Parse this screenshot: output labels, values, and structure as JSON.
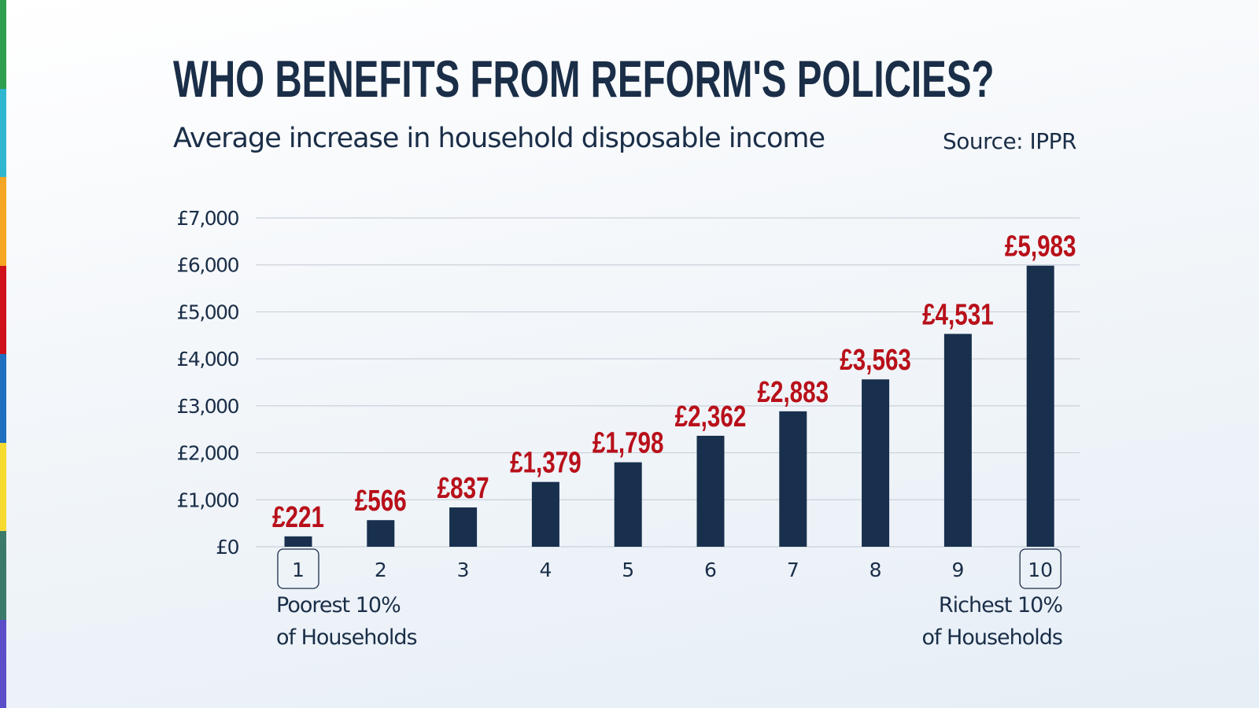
{
  "header": {
    "title": "WHO BENEFITS FROM REFORM'S POLICIES?",
    "subtitle": "Average increase in household disposable income",
    "source": "Source: IPPR"
  },
  "colors": {
    "bar": "#18304d",
    "value_label": "#b8101a",
    "title": "#1a2e48",
    "gridline": "#c9d1da",
    "side_strip": [
      "#2e9e4f",
      "#2fb6d0",
      "#f5a623",
      "#d0101b",
      "#1e6fc0",
      "#f7da2f",
      "#3b7a6a",
      "#5b4fc9"
    ]
  },
  "chart_data": {
    "type": "bar",
    "title": "WHO BENEFITS FROM REFORM'S POLICIES?",
    "subtitle": "Average increase in household disposable income",
    "categories": [
      "1",
      "2",
      "3",
      "4",
      "5",
      "6",
      "7",
      "8",
      "9",
      "10"
    ],
    "values": [
      221,
      566,
      837,
      1379,
      1798,
      2362,
      2883,
      3563,
      4531,
      5983
    ],
    "data_labels": [
      "£221",
      "£566",
      "£837",
      "£1,379",
      "£1,798",
      "£2,362",
      "£2,883",
      "£3,563",
      "£4,531",
      "£5,983"
    ],
    "yticks": [
      0,
      1000,
      2000,
      3000,
      4000,
      5000,
      6000,
      7000
    ],
    "ytick_labels": [
      "£0",
      "£1,000",
      "£2,000",
      "£3,000",
      "£4,000",
      "£5,000",
      "£6,000",
      "£7,000"
    ],
    "ylim": [
      0,
      7000
    ],
    "grid": true,
    "highlighted_categories": [
      "1",
      "10"
    ],
    "annotations": {
      "left": [
        "Poorest 10%",
        "of Households"
      ],
      "right": [
        "Richest 10%",
        "of Households"
      ]
    }
  }
}
